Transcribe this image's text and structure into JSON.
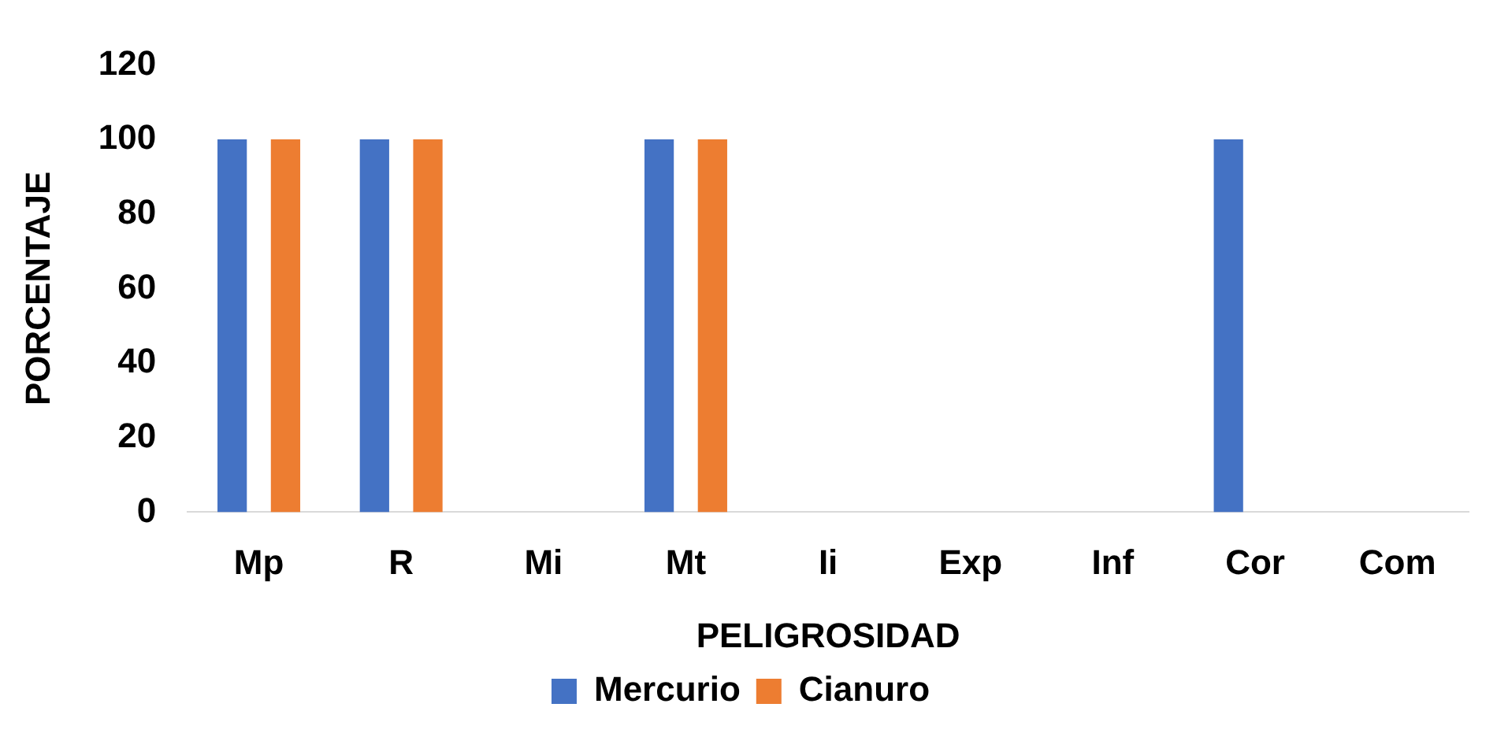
{
  "chart_data": {
    "type": "bar",
    "xlabel": "PELIGROSIDAD",
    "ylabel": "PORCENTAJE",
    "categories": [
      "Mp",
      "R",
      "Mi",
      "Mt",
      "Ii",
      "Exp",
      "Inf",
      "Cor",
      "Com"
    ],
    "series": [
      {
        "name": "Mercurio",
        "color": "#4472c4",
        "values": [
          100,
          100,
          0,
          100,
          0,
          0,
          0,
          100,
          0
        ]
      },
      {
        "name": "Cianuro",
        "color": "#ed7d31",
        "values": [
          100,
          100,
          0,
          100,
          0,
          0,
          0,
          0,
          0
        ]
      }
    ],
    "ylim": [
      0,
      120
    ],
    "yticks": [
      0,
      20,
      40,
      60,
      80,
      100,
      120
    ],
    "grid": false,
    "legend": "bottom"
  }
}
